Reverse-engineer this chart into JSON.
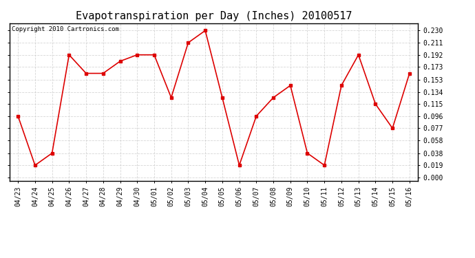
{
  "title": "Evapotranspiration per Day (Inches) 20100517",
  "copyright": "Copyright 2010 Cartronics.com",
  "dates": [
    "04/23",
    "04/24",
    "04/25",
    "04/26",
    "04/27",
    "04/28",
    "04/29",
    "04/30",
    "05/01",
    "05/02",
    "05/03",
    "05/04",
    "05/05",
    "05/06",
    "05/07",
    "05/08",
    "05/09",
    "05/10",
    "05/11",
    "05/12",
    "05/13",
    "05/14",
    "05/15",
    "05/16"
  ],
  "values": [
    0.096,
    0.019,
    0.038,
    0.192,
    0.163,
    0.163,
    0.182,
    0.192,
    0.192,
    0.125,
    0.211,
    0.23,
    0.125,
    0.019,
    0.096,
    0.125,
    0.144,
    0.038,
    0.019,
    0.144,
    0.192,
    0.115,
    0.077,
    0.163
  ],
  "line_color": "#dd0000",
  "marker_color": "#dd0000",
  "bg_color": "#ffffff",
  "plot_bg_color": "#ffffff",
  "grid_color": "#cccccc",
  "ylim_min": -0.005,
  "ylim_max": 0.2415,
  "yticks": [
    0.0,
    0.019,
    0.038,
    0.058,
    0.077,
    0.096,
    0.115,
    0.134,
    0.153,
    0.173,
    0.192,
    0.211,
    0.23
  ],
  "title_fontsize": 11,
  "tick_fontsize": 7,
  "copyright_fontsize": 6.5
}
